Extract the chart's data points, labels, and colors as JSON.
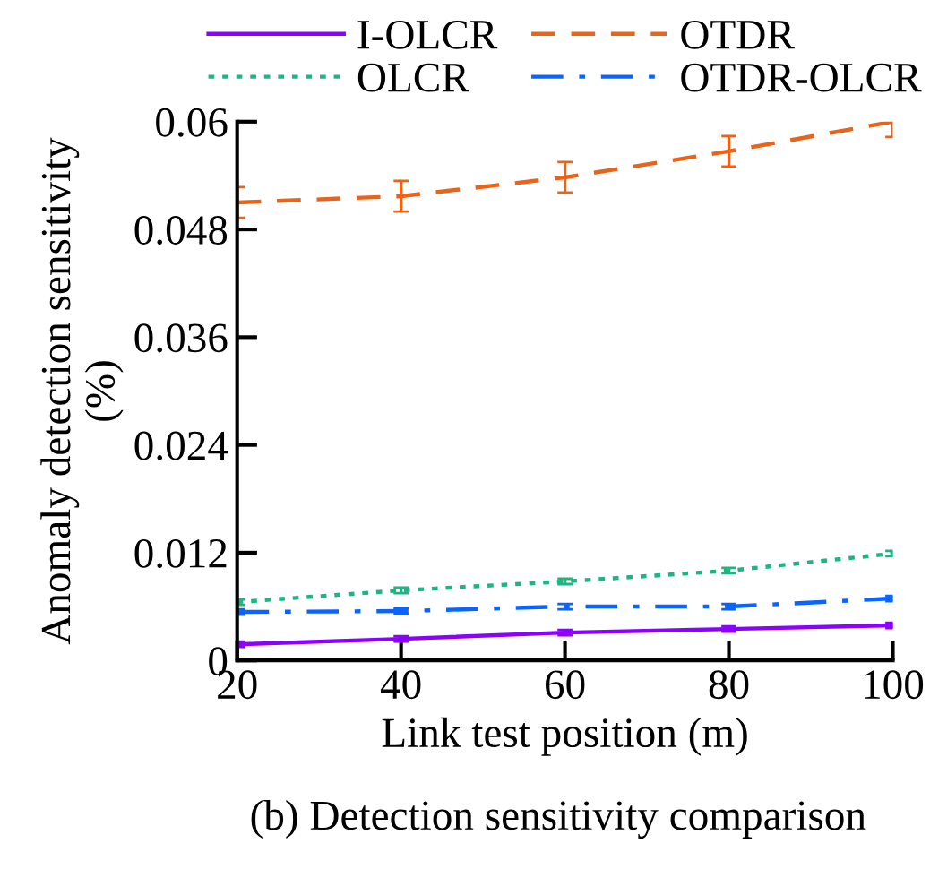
{
  "chart_data": {
    "type": "line",
    "xlabel": "Link test position (m)",
    "ylabel": "Anomaly detection sensitivity\n(%)",
    "x": [
      20,
      40,
      60,
      80,
      100
    ],
    "series": [
      {
        "name": "I-OLCR",
        "color": "#8b00ff",
        "line_style": "solid",
        "values": [
          0.0018,
          0.0024,
          0.0031,
          0.0035,
          0.0039
        ],
        "errors": [
          0.0003,
          0.0003,
          0.0003,
          0.0003,
          0.0003
        ]
      },
      {
        "name": "OLCR",
        "color": "#1fb57f",
        "line_style": "dotted",
        "values": [
          0.0065,
          0.0078,
          0.0088,
          0.01,
          0.0119
        ],
        "errors": [
          0.0003,
          0.0003,
          0.0003,
          0.0003,
          0.0003
        ]
      },
      {
        "name": "OTDR",
        "color": "#e8641b",
        "line_style": "dashed",
        "values": [
          0.051,
          0.0517,
          0.0538,
          0.0567,
          0.06
        ],
        "errors": [
          0.0017,
          0.0017,
          0.0017,
          0.0017,
          0.0017
        ]
      },
      {
        "name": "OTDR-OLCR",
        "color": "#0a64ff",
        "line_style": "dashdot",
        "values": [
          0.0054,
          0.0055,
          0.006,
          0.006,
          0.0069
        ],
        "errors": [
          0.0003,
          0.0003,
          0.0003,
          0.0003,
          0.0003
        ]
      }
    ],
    "xlim": [
      20,
      100
    ],
    "xticks": [
      20,
      40,
      60,
      80,
      100
    ],
    "ylim": [
      0,
      0.06
    ],
    "yticks": [
      0,
      0.012,
      0.024,
      0.036,
      0.048,
      0.06
    ],
    "grid": false,
    "legend": "top",
    "marker": "none",
    "annotations": [
      "(b) Detection sensitivity comparison"
    ]
  }
}
